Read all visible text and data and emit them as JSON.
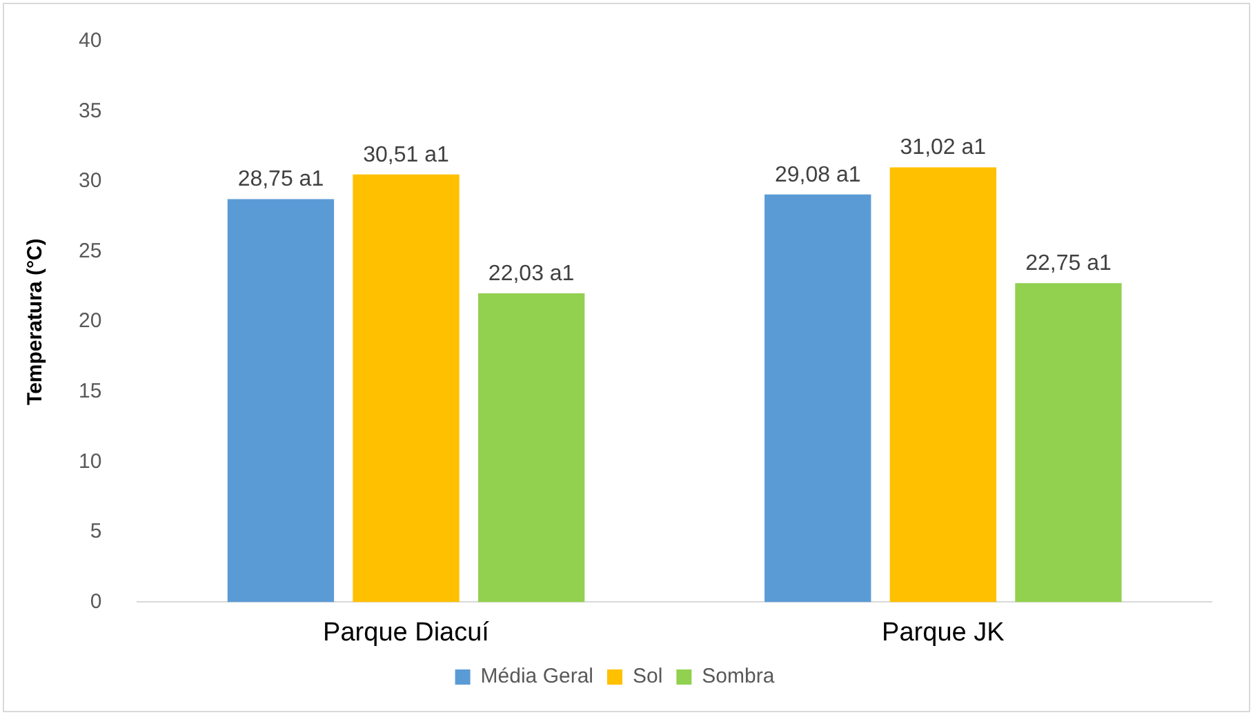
{
  "chart_data": {
    "type": "bar",
    "ylabel": "Temperatura (°C)",
    "categories": [
      "Parque Diacuí",
      "Parque JK"
    ],
    "series": [
      {
        "name": "Média Geral",
        "color": "#5b9bd5",
        "values": [
          28.75,
          29.08
        ],
        "value_labels": [
          "28,75 a1",
          "29,08 a1"
        ]
      },
      {
        "name": "Sol",
        "color": "#ffc000",
        "values": [
          30.51,
          31.02
        ],
        "value_labels": [
          "30,51 a1",
          "31,02 a1"
        ]
      },
      {
        "name": "Sombra",
        "color": "#92d050",
        "values": [
          22.03,
          22.75
        ],
        "value_labels": [
          "22,03 a1",
          "22,75 a1"
        ]
      }
    ],
    "ylim": [
      0,
      40
    ],
    "yticks": [
      0,
      5,
      10,
      15,
      20,
      25,
      30,
      35,
      40
    ],
    "grid": false,
    "legend": "bottom"
  }
}
